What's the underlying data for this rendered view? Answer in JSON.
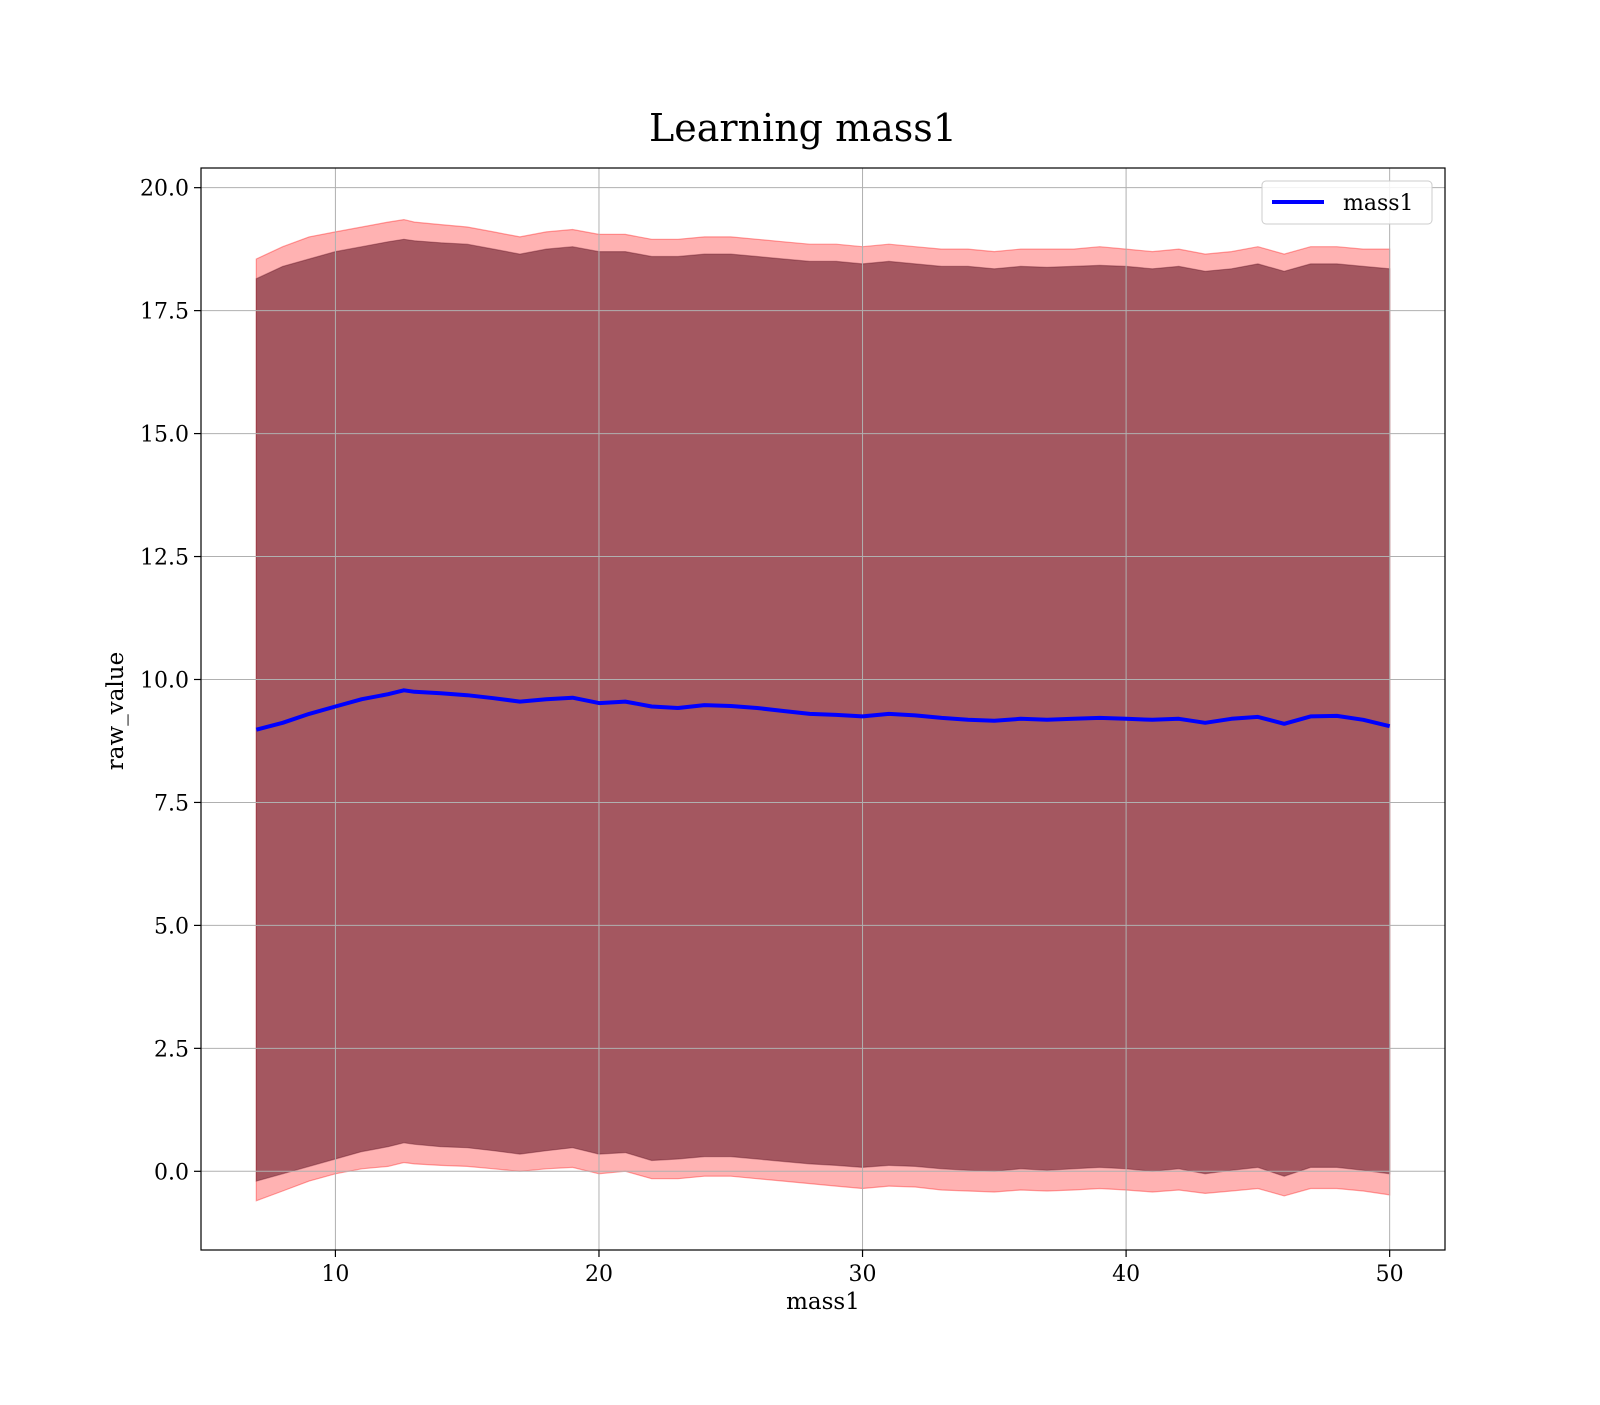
{
  "chart_data": {
    "type": "line",
    "title": "Learning mass1",
    "xlabel": "mass1",
    "ylabel": "raw_value",
    "xlim": [
      4.9,
      52.1
    ],
    "ylim": [
      -1.6,
      20.4
    ],
    "x_ticks": [
      10,
      20,
      30,
      40,
      50
    ],
    "x_tick_labels": [
      "10",
      "20",
      "30",
      "40",
      "50"
    ],
    "y_ticks": [
      0.0,
      2.5,
      5.0,
      7.5,
      10.0,
      12.5,
      15.0,
      17.5,
      20.0
    ],
    "y_tick_labels": [
      "0.0",
      "2.5",
      "5.0",
      "7.5",
      "10.0",
      "12.5",
      "15.0",
      "17.5",
      "20.0"
    ],
    "grid": true,
    "legend": {
      "placement": "top-right",
      "entries": [
        "mass1"
      ]
    },
    "x": [
      7.0,
      8.0,
      9.0,
      10.0,
      11.0,
      12.0,
      12.6,
      13.0,
      14.0,
      15.0,
      16.0,
      17.0,
      18.0,
      19.0,
      20.0,
      21.0,
      22.0,
      23.0,
      24.0,
      25.0,
      26.0,
      27.0,
      28.0,
      29.0,
      30.0,
      31.0,
      32.0,
      33.0,
      34.0,
      35.0,
      36.0,
      37.0,
      38.0,
      39.0,
      40.0,
      41.0,
      42.0,
      43.0,
      44.0,
      45.0,
      46.0,
      47.0,
      48.0,
      49.0,
      50.0
    ],
    "series": [
      {
        "name": "mass1",
        "color": "#0000ff",
        "values": [
          8.98,
          9.12,
          9.3,
          9.45,
          9.6,
          9.7,
          9.78,
          9.75,
          9.72,
          9.68,
          9.62,
          9.55,
          9.6,
          9.63,
          9.52,
          9.55,
          9.45,
          9.42,
          9.48,
          9.46,
          9.42,
          9.36,
          9.3,
          9.28,
          9.25,
          9.3,
          9.27,
          9.22,
          9.18,
          9.16,
          9.2,
          9.18,
          9.2,
          9.22,
          9.2,
          9.18,
          9.2,
          9.12,
          9.2,
          9.24,
          9.1,
          9.25,
          9.26,
          9.18,
          9.05
        ]
      }
    ],
    "bands": [
      {
        "color": "#ff0000",
        "upper": [
          18.55,
          18.8,
          19.0,
          19.1,
          19.2,
          19.3,
          19.35,
          19.3,
          19.25,
          19.2,
          19.1,
          19.0,
          19.1,
          19.15,
          19.05,
          19.05,
          18.95,
          18.95,
          19.0,
          19.0,
          18.95,
          18.9,
          18.85,
          18.85,
          18.8,
          18.85,
          18.8,
          18.75,
          18.75,
          18.7,
          18.75,
          18.75,
          18.75,
          18.8,
          18.75,
          18.7,
          18.75,
          18.65,
          18.7,
          18.8,
          18.65,
          18.8,
          18.8,
          18.75,
          18.75
        ],
        "lower": [
          -0.6,
          -0.4,
          -0.2,
          -0.05,
          0.05,
          0.1,
          0.18,
          0.15,
          0.12,
          0.1,
          0.05,
          0.0,
          0.05,
          0.08,
          -0.05,
          0.0,
          -0.15,
          -0.15,
          -0.1,
          -0.1,
          -0.15,
          -0.2,
          -0.25,
          -0.3,
          -0.35,
          -0.3,
          -0.32,
          -0.38,
          -0.4,
          -0.42,
          -0.38,
          -0.4,
          -0.38,
          -0.35,
          -0.38,
          -0.42,
          -0.38,
          -0.45,
          -0.4,
          -0.35,
          -0.5,
          -0.35,
          -0.35,
          -0.4,
          -0.48
        ]
      },
      {
        "color": "#5a0c1e",
        "upper": [
          18.15,
          18.4,
          18.55,
          18.7,
          18.8,
          18.9,
          18.95,
          18.92,
          18.88,
          18.85,
          18.75,
          18.65,
          18.75,
          18.8,
          18.7,
          18.7,
          18.6,
          18.6,
          18.65,
          18.65,
          18.6,
          18.55,
          18.5,
          18.5,
          18.45,
          18.5,
          18.45,
          18.4,
          18.4,
          18.35,
          18.4,
          18.38,
          18.4,
          18.42,
          18.4,
          18.35,
          18.4,
          18.3,
          18.35,
          18.45,
          18.3,
          18.45,
          18.45,
          18.4,
          18.35
        ],
        "lower": [
          -0.2,
          -0.05,
          0.1,
          0.25,
          0.4,
          0.5,
          0.58,
          0.55,
          0.5,
          0.48,
          0.42,
          0.35,
          0.42,
          0.48,
          0.35,
          0.38,
          0.22,
          0.25,
          0.3,
          0.3,
          0.25,
          0.2,
          0.15,
          0.12,
          0.08,
          0.12,
          0.1,
          0.05,
          0.02,
          0.0,
          0.05,
          0.02,
          0.05,
          0.08,
          0.05,
          0.0,
          0.05,
          -0.05,
          0.02,
          0.08,
          -0.1,
          0.08,
          0.08,
          0.02,
          -0.05
        ]
      }
    ]
  }
}
